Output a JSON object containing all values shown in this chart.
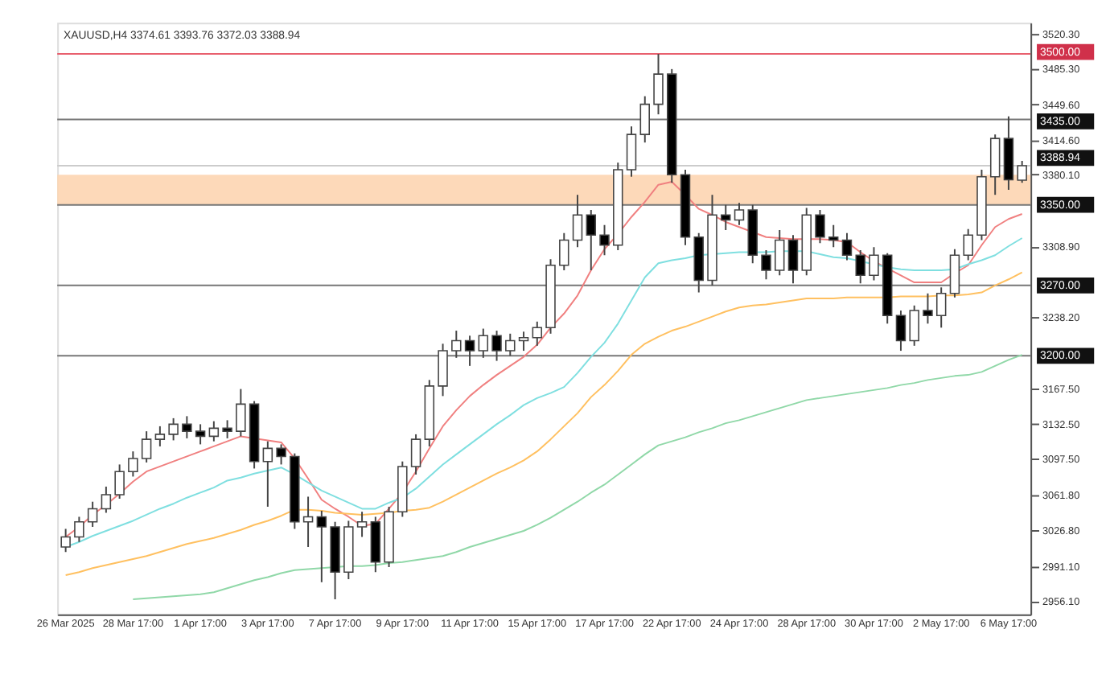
{
  "chart_data": {
    "type": "candlestick",
    "annotations": [
      "XAUUSD,H4  3374.61 3393.76 3372.03 3388.94"
    ],
    "categories": [
      "26 Mar 2025",
      null,
      null,
      null,
      null,
      "28 Mar 17:00",
      null,
      null,
      null,
      null,
      "1 Apr 17:00",
      null,
      null,
      null,
      null,
      "3 Apr 17:00",
      null,
      null,
      null,
      null,
      "7 Apr 17:00",
      null,
      null,
      null,
      null,
      "9 Apr 17:00",
      null,
      null,
      null,
      null,
      "11 Apr 17:00",
      null,
      null,
      null,
      null,
      "15 Apr 17:00",
      null,
      null,
      null,
      null,
      "17 Apr 17:00",
      null,
      null,
      null,
      null,
      "22 Apr 17:00",
      null,
      null,
      null,
      null,
      "24 Apr 17:00",
      null,
      null,
      null,
      null,
      "28 Apr 17:00",
      null,
      null,
      null,
      null,
      "30 Apr 17:00",
      null,
      null,
      null,
      null,
      "2 May 17:00",
      null,
      null,
      null,
      null,
      "6 May 17:00",
      null
    ],
    "ohlc": [
      [
        3010,
        3028,
        3005,
        3020
      ],
      [
        3020,
        3040,
        3015,
        3035
      ],
      [
        3035,
        3055,
        3030,
        3048
      ],
      [
        3048,
        3070,
        3044,
        3062
      ],
      [
        3062,
        3092,
        3058,
        3085
      ],
      [
        3085,
        3105,
        3080,
        3098
      ],
      [
        3098,
        3125,
        3094,
        3117
      ],
      [
        3117,
        3130,
        3110,
        3122
      ],
      [
        3122,
        3138,
        3116,
        3132
      ],
      [
        3132,
        3140,
        3118,
        3125
      ],
      [
        3125,
        3132,
        3112,
        3120
      ],
      [
        3120,
        3135,
        3115,
        3128
      ],
      [
        3128,
        3136,
        3118,
        3125
      ],
      [
        3125,
        3167,
        3120,
        3152
      ],
      [
        3152,
        3155,
        3088,
        3095
      ],
      [
        3095,
        3115,
        3050,
        3108
      ],
      [
        3108,
        3112,
        3092,
        3100
      ],
      [
        3100,
        3103,
        3028,
        3035
      ],
      [
        3035,
        3060,
        3010,
        3040
      ],
      [
        3040,
        3046,
        2975,
        3030
      ],
      [
        3030,
        3035,
        2958,
        2985
      ],
      [
        2985,
        3036,
        2978,
        3030
      ],
      [
        3030,
        3045,
        3020,
        3035
      ],
      [
        3035,
        3040,
        2985,
        2995
      ],
      [
        2995,
        3050,
        2990,
        3045
      ],
      [
        3045,
        3095,
        3040,
        3090
      ],
      [
        3090,
        3122,
        3082,
        3117
      ],
      [
        3117,
        3176,
        3110,
        3170
      ],
      [
        3170,
        3212,
        3160,
        3205
      ],
      [
        3205,
        3225,
        3198,
        3215
      ],
      [
        3215,
        3220,
        3190,
        3205
      ],
      [
        3205,
        3227,
        3198,
        3220
      ],
      [
        3220,
        3225,
        3195,
        3205
      ],
      [
        3205,
        3222,
        3200,
        3215
      ],
      [
        3215,
        3224,
        3205,
        3218
      ],
      [
        3218,
        3234,
        3210,
        3228
      ],
      [
        3228,
        3296,
        3222,
        3290
      ],
      [
        3290,
        3322,
        3285,
        3315
      ],
      [
        3315,
        3360,
        3308,
        3340
      ],
      [
        3340,
        3345,
        3285,
        3320
      ],
      [
        3320,
        3330,
        3300,
        3310
      ],
      [
        3310,
        3392,
        3305,
        3385
      ],
      [
        3385,
        3428,
        3378,
        3420
      ],
      [
        3420,
        3458,
        3412,
        3450
      ],
      [
        3450,
        3500,
        3440,
        3480
      ],
      [
        3480,
        3485,
        3372,
        3380
      ],
      [
        3380,
        3385,
        3310,
        3318
      ],
      [
        3318,
        3322,
        3263,
        3275
      ],
      [
        3275,
        3360,
        3270,
        3340
      ],
      [
        3340,
        3350,
        3325,
        3335
      ],
      [
        3335,
        3352,
        3330,
        3345
      ],
      [
        3345,
        3350,
        3292,
        3300
      ],
      [
        3300,
        3305,
        3276,
        3285
      ],
      [
        3285,
        3325,
        3280,
        3315
      ],
      [
        3315,
        3320,
        3272,
        3285
      ],
      [
        3285,
        3347,
        3280,
        3340
      ],
      [
        3340,
        3345,
        3312,
        3318
      ],
      [
        3318,
        3330,
        3308,
        3315
      ],
      [
        3315,
        3322,
        3295,
        3300
      ],
      [
        3300,
        3305,
        3272,
        3280
      ],
      [
        3280,
        3308,
        3275,
        3300
      ],
      [
        3300,
        3302,
        3232,
        3240
      ],
      [
        3240,
        3245,
        3205,
        3215
      ],
      [
        3215,
        3250,
        3210,
        3245
      ],
      [
        3245,
        3262,
        3232,
        3240
      ],
      [
        3240,
        3268,
        3228,
        3262
      ],
      [
        3262,
        3306,
        3258,
        3300
      ],
      [
        3300,
        3326,
        3295,
        3320
      ],
      [
        3320,
        3385,
        3315,
        3378
      ],
      [
        3378,
        3420,
        3360,
        3416
      ],
      [
        3416,
        3438,
        3365,
        3375
      ],
      [
        3374.61,
        3393.76,
        3372.03,
        3388.94
      ]
    ],
    "series": [
      {
        "type": "line",
        "color": "#f08080",
        "values": [
          3020,
          3030,
          3042,
          3052,
          3063,
          3075,
          3085,
          3090,
          3095,
          3100,
          3105,
          3110,
          3115,
          3120,
          3118,
          3116,
          3114,
          3098,
          3078,
          3057,
          3048,
          3040,
          3031,
          3033,
          3048,
          3064,
          3085,
          3108,
          3130,
          3146,
          3160,
          3171,
          3181,
          3190,
          3199,
          3211,
          3228,
          3242,
          3260,
          3285,
          3306,
          3321,
          3338,
          3353,
          3370,
          3373,
          3360,
          3346,
          3340,
          3333,
          3328,
          3323,
          3318,
          3317,
          3316,
          3316,
          3316,
          3315,
          3313,
          3303,
          3294,
          3287,
          3280,
          3273,
          3273,
          3273,
          3282,
          3290,
          3310,
          3328,
          3336,
          3341
        ]
      },
      {
        "type": "line",
        "color": "#7fdfe0",
        "values": [
          3010,
          3015,
          3021,
          3026,
          3031,
          3036,
          3042,
          3048,
          3053,
          3059,
          3064,
          3069,
          3076,
          3079,
          3083,
          3086,
          3089,
          3082,
          3074,
          3066,
          3060,
          3054,
          3048,
          3048,
          3054,
          3059,
          3068,
          3080,
          3092,
          3102,
          3112,
          3122,
          3132,
          3141,
          3151,
          3158,
          3163,
          3169,
          3183,
          3199,
          3213,
          3232,
          3255,
          3278,
          3292,
          3295,
          3297,
          3300,
          3301,
          3302,
          3303,
          3303,
          3303,
          3304,
          3304,
          3304,
          3301,
          3298,
          3297,
          3294,
          3291,
          3288,
          3286,
          3285,
          3285,
          3285,
          3286,
          3291,
          3295,
          3300,
          3309,
          3317
        ]
      },
      {
        "type": "line",
        "color": "#ffc060",
        "values": [
          2982,
          2985,
          2989,
          2992,
          2995,
          2998,
          3001,
          3005,
          3009,
          3013,
          3016,
          3019,
          3023,
          3027,
          3032,
          3036,
          3041,
          3047,
          3047,
          3046,
          3044,
          3043,
          3042,
          3043,
          3044,
          3046,
          3047,
          3049,
          3055,
          3062,
          3069,
          3076,
          3083,
          3089,
          3096,
          3105,
          3117,
          3130,
          3143,
          3159,
          3171,
          3185,
          3201,
          3212,
          3219,
          3225,
          3229,
          3234,
          3239,
          3244,
          3248,
          3250,
          3251,
          3253,
          3255,
          3257,
          3257,
          3257,
          3258,
          3258,
          3258,
          3258,
          3259,
          3259,
          3259,
          3260,
          3260,
          3261,
          3263,
          3270,
          3276,
          3283
        ]
      },
      {
        "type": "line",
        "color": "#90d8a8",
        "values": [
          null,
          null,
          null,
          null,
          null,
          2958,
          2959,
          2960,
          2961,
          2962,
          2963,
          2965,
          2969,
          2973,
          2977,
          2980,
          2984,
          2987,
          2988,
          2989,
          2990,
          2991,
          2991,
          2992,
          2994,
          2995,
          2997,
          2999,
          3001,
          3005,
          3010,
          3014,
          3018,
          3022,
          3026,
          3032,
          3039,
          3047,
          3055,
          3064,
          3072,
          3082,
          3092,
          3102,
          3111,
          3115,
          3119,
          3124,
          3128,
          3133,
          3136,
          3140,
          3144,
          3148,
          3152,
          3156,
          3158,
          3160,
          3162,
          3164,
          3166,
          3168,
          3171,
          3173,
          3176,
          3178,
          3180,
          3181,
          3184,
          3190,
          3196,
          3201
        ]
      }
    ],
    "ylim": [
      2943,
      3531
    ],
    "yticks": [
      {
        "value": 2956.1,
        "label": "2956.10"
      },
      {
        "value": 2991.1,
        "label": "2991.10"
      },
      {
        "value": 3026.8,
        "label": "3026.80"
      },
      {
        "value": 3061.8,
        "label": "3061.80"
      },
      {
        "value": 3097.5,
        "label": "3097.50"
      },
      {
        "value": 3132.5,
        "label": "3132.50"
      },
      {
        "value": 3167.5,
        "label": "3167.50"
      },
      {
        "value": 3238.2,
        "label": "3238.20"
      },
      {
        "value": 3308.9,
        "label": "3308.90"
      },
      {
        "value": 3380.1,
        "label": "3380.10"
      },
      {
        "value": 3414.6,
        "label": "3414.60"
      },
      {
        "value": 3449.6,
        "label": "3449.60"
      },
      {
        "value": 3485.3,
        "label": "3485.30"
      },
      {
        "value": 3520.3,
        "label": "3520.30"
      }
    ],
    "bands": [
      {
        "axis": "y",
        "from": 3350,
        "to": 3380,
        "color": "#fdd5b1"
      }
    ],
    "ref_lines": [
      {
        "axis": "y",
        "value": 3500,
        "label": "3500.00",
        "color": "#e8606e"
      },
      {
        "axis": "y",
        "value": 3435,
        "label": "3435.00",
        "color": "#777777"
      },
      {
        "axis": "y",
        "value": 3388.94,
        "label": "3388.94",
        "color": "#cccccc"
      },
      {
        "axis": "y",
        "value": 3350,
        "label": "3350.00",
        "color": "#777777"
      },
      {
        "axis": "y",
        "value": 3270,
        "label": "3270.00",
        "color": "#777777"
      },
      {
        "axis": "y",
        "value": 3200,
        "label": "3200.00",
        "color": "#777777"
      }
    ],
    "grid": false
  }
}
